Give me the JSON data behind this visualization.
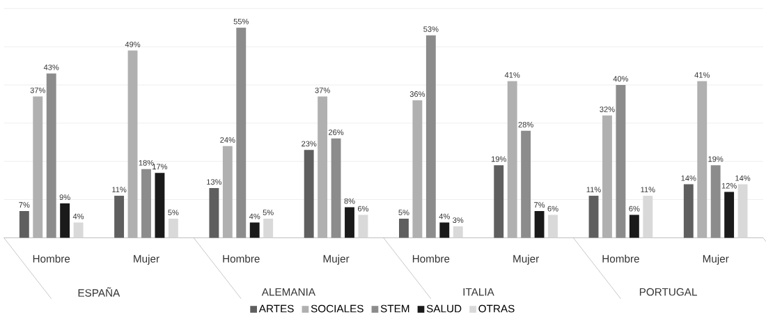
{
  "chart_data": {
    "type": "bar",
    "categories": [
      "Hombre",
      "Mujer",
      "Hombre",
      "Mujer",
      "Hombre",
      "Mujer",
      "Hombre",
      "Mujer"
    ],
    "annotations": [
      "ESPAÑA",
      "ALEMANIA",
      "ITALIA",
      "PORTUGAL"
    ],
    "ylim": [
      0,
      60
    ],
    "yticks": [
      {
        "value": 0,
        "label": null
      },
      {
        "value": 10,
        "label": null
      },
      {
        "value": 20,
        "label": null
      },
      {
        "value": 30,
        "label": null
      },
      {
        "value": 40,
        "label": null
      },
      {
        "value": 50,
        "label": null
      },
      {
        "value": 60,
        "label": null
      }
    ],
    "grid": "y",
    "legend": "bottom",
    "tick_labels": "x",
    "series": [
      {
        "name": "ARTES",
        "color": "#5f5f5f",
        "values": [
          7,
          11,
          13,
          23,
          5,
          19,
          11,
          14
        ],
        "value_labels": [
          "7%",
          "11%",
          "13%",
          "23%",
          "5%",
          "19%",
          "11%",
          "14%"
        ]
      },
      {
        "name": "SOCIALES",
        "color": "#b0b0b0",
        "values": [
          37,
          49,
          24,
          37,
          36,
          41,
          32,
          41
        ],
        "value_labels": [
          "37%",
          "49%",
          "24%",
          "37%",
          "36%",
          "41%",
          "32%",
          "41%"
        ]
      },
      {
        "name": "STEM",
        "color": "#8c8c8c",
        "values": [
          43,
          18,
          55,
          26,
          53,
          28,
          40,
          19
        ],
        "value_labels": [
          "43%",
          "18%",
          "55%",
          "26%",
          "53%",
          "28%",
          "40%",
          "19%"
        ]
      },
      {
        "name": "SALUD",
        "color": "#1a1a1a",
        "values": [
          9,
          17,
          4,
          8,
          4,
          7,
          6,
          12
        ],
        "value_labels": [
          "9%",
          "17%",
          "4%",
          "8%",
          "4%",
          "7%",
          "6%",
          "12%"
        ]
      },
      {
        "name": "OTRAS",
        "color": "#d9d9d9",
        "values": [
          4,
          5,
          5,
          6,
          3,
          6,
          11,
          14
        ],
        "value_labels": [
          "4%",
          "5%",
          "5%",
          "6%",
          "3%",
          "6%",
          "11%",
          "14%"
        ]
      }
    ]
  }
}
